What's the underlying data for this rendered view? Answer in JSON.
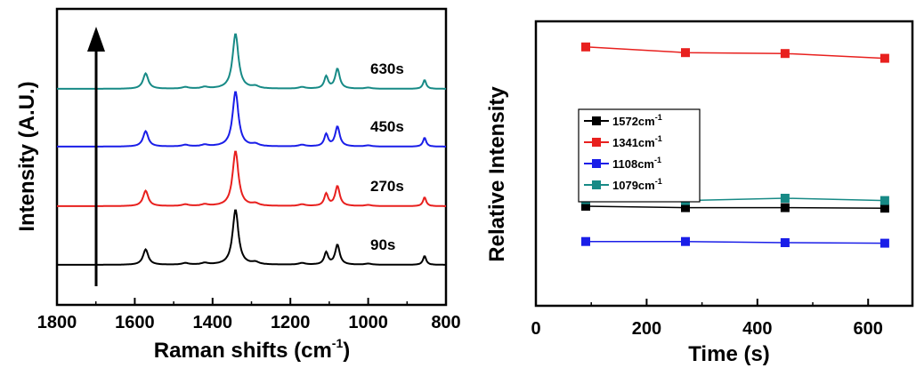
{
  "chart_data": [
    {
      "type": "line",
      "ylabel": "Intensity (A.U.)",
      "xlabel_main": "Raman shifts (cm",
      "xlabel_sup": "-1",
      "xlabel_tail": ")",
      "x_ticks": [
        "1800",
        "1600",
        "1400",
        "1200",
        "1000",
        "800"
      ],
      "xlim": [
        1800,
        800
      ],
      "peaks": [
        {
          "pos": 1572,
          "height": 0.28,
          "width": 8
        },
        {
          "pos": 1470,
          "height": 0.03,
          "width": 10
        },
        {
          "pos": 1420,
          "height": 0.03,
          "width": 10
        },
        {
          "pos": 1341,
          "height": 1.0,
          "width": 9
        },
        {
          "pos": 1290,
          "height": 0.04,
          "width": 10
        },
        {
          "pos": 1170,
          "height": 0.03,
          "width": 10
        },
        {
          "pos": 1108,
          "height": 0.22,
          "width": 6
        },
        {
          "pos": 1079,
          "height": 0.36,
          "width": 7
        },
        {
          "pos": 1000,
          "height": 0.02,
          "width": 10
        },
        {
          "pos": 855,
          "height": 0.16,
          "width": 5
        }
      ],
      "series": [
        {
          "name": "90s",
          "color": "#000000"
        },
        {
          "name": "270s",
          "color": "#e8201e"
        },
        {
          "name": "450s",
          "color": "#1a1ee8"
        },
        {
          "name": "630s",
          "color": "#178a86"
        }
      ],
      "arrow": "up"
    },
    {
      "type": "line",
      "ylabel": "Relative Intensity",
      "xlabel": "Time (s)",
      "x_ticks": [
        "0",
        "200",
        "400",
        "600"
      ],
      "xlim": [
        0,
        680
      ],
      "ylim": [
        0,
        1
      ],
      "x": [
        90,
        270,
        450,
        630
      ],
      "legend_position": "middle-left",
      "series": [
        {
          "name_main": "1572cm",
          "name_sup": "-1",
          "color": "#000000",
          "values": [
            0.35,
            0.345,
            0.345,
            0.343
          ]
        },
        {
          "name_main": "1341cm",
          "name_sup": "-1",
          "color": "#e8201e",
          "values": [
            0.91,
            0.89,
            0.887,
            0.87
          ]
        },
        {
          "name_main": "1108cm",
          "name_sup": "-1",
          "color": "#1a1ee8",
          "values": [
            0.226,
            0.226,
            0.222,
            0.22
          ]
        },
        {
          "name_main": "1079cm",
          "name_sup": "-1",
          "color": "#178a86",
          "values": [
            0.373,
            0.37,
            0.378,
            0.37
          ]
        }
      ]
    }
  ]
}
